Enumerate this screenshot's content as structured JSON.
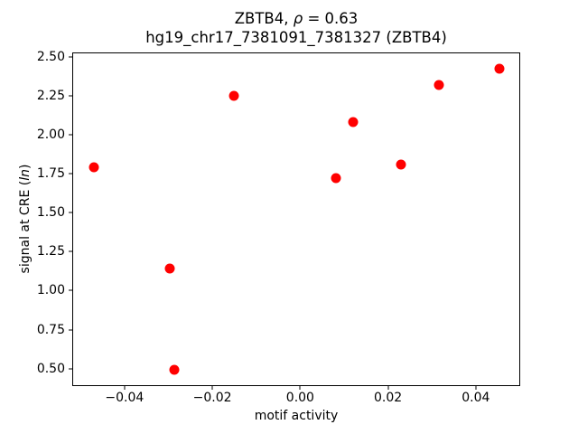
{
  "title": {
    "line1_prefix": "ZBTB4, ",
    "line1_rho": "ρ",
    "line1_suffix": " = 0.63",
    "line2": "hg19_chr17_7381091_7381327 (ZBTB4)"
  },
  "axes": {
    "xlabel": "motif activity",
    "ylabel_prefix": "signal at CRE (",
    "ylabel_italic": "ln",
    "ylabel_suffix": ")"
  },
  "chart_data": {
    "type": "scatter",
    "title": "ZBTB4, ρ = 0.63",
    "subtitle": "hg19_chr17_7381091_7381327 (ZBTB4)",
    "rho": 0.63,
    "xlabel": "motif activity",
    "ylabel": "signal at CRE (ln)",
    "xlim": [
      -0.0517,
      0.0499
    ],
    "ylim": [
      0.393,
      2.523
    ],
    "xticks": [
      -0.04,
      -0.02,
      0,
      0.02,
      0.04
    ],
    "xtick_labels": [
      "−0.04",
      "−0.02",
      "0.00",
      "0.02",
      "0.04"
    ],
    "yticks": [
      0.5,
      0.75,
      1.0,
      1.25,
      1.5,
      1.75,
      2.0,
      2.25,
      2.5
    ],
    "ytick_labels": [
      "0.50",
      "0.75",
      "1.00",
      "1.25",
      "1.50",
      "1.75",
      "2.00",
      "2.25",
      "2.50"
    ],
    "grid": false,
    "legend": null,
    "marker_color": "#ff0000",
    "marker_diameter_px": 11,
    "points": [
      {
        "x": -0.047,
        "y": 1.79
      },
      {
        "x": -0.0296,
        "y": 1.14
      },
      {
        "x": -0.0287,
        "y": 0.49
      },
      {
        "x": -0.015,
        "y": 2.25
      },
      {
        "x": 0.0082,
        "y": 1.72
      },
      {
        "x": 0.0121,
        "y": 2.08
      },
      {
        "x": 0.0229,
        "y": 1.81
      },
      {
        "x": 0.0315,
        "y": 2.32
      },
      {
        "x": 0.0453,
        "y": 2.42
      }
    ]
  }
}
